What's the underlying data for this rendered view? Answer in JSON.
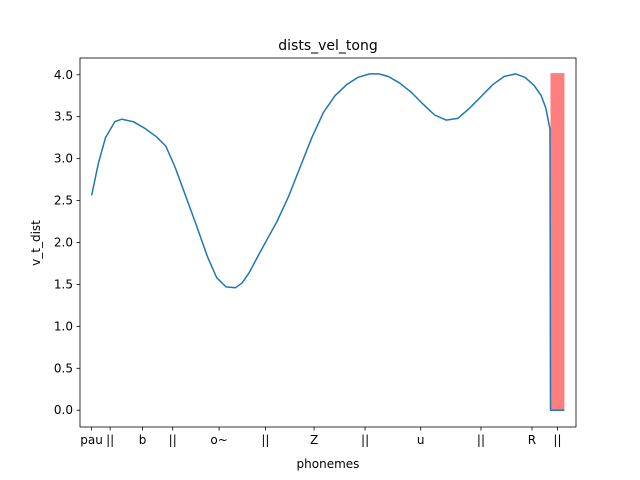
{
  "chart_data": {
    "type": "line",
    "title": "dists_vel_tong",
    "xlabel": "phonemes",
    "ylabel": "v_t_dist",
    "xlim": [
      -0.5,
      20.9
    ],
    "ylim": [
      -0.2,
      4.2
    ],
    "yticks": [
      0.0,
      0.5,
      1.0,
      1.5,
      2.0,
      2.5,
      3.0,
      3.5,
      4.0
    ],
    "ytick_labels": [
      "0.0",
      "0.5",
      "1.0",
      "1.5",
      "2.0",
      "2.5",
      "3.0",
      "3.5",
      "4.0"
    ],
    "xticks": [
      0,
      0.8,
      2.2,
      3.5,
      5.5,
      7.5,
      9.6,
      11.8,
      14.2,
      16.8,
      19.0,
      20.1
    ],
    "xtick_labels": [
      "pau",
      "||",
      "b",
      "||",
      "o~",
      "||",
      "Z",
      "||",
      "u",
      "||",
      "R",
      "||"
    ],
    "series": [
      {
        "color": "#1f77b4",
        "x": [
          0,
          0.3,
          0.6,
          1.0,
          1.3,
          1.8,
          2.3,
          2.8,
          3.2,
          3.6,
          4.0,
          4.5,
          5.0,
          5.4,
          5.8,
          6.2,
          6.5,
          6.8,
          7.2,
          7.6,
          8.0,
          8.5,
          9.0,
          9.5,
          10.0,
          10.5,
          11.0,
          11.5,
          12.0,
          12.4,
          12.8,
          13.3,
          13.8,
          14.3,
          14.8,
          15.3,
          15.8,
          16.3,
          16.8,
          17.3,
          17.8,
          18.3,
          18.7,
          19.1,
          19.4,
          19.6,
          19.78,
          19.8,
          20.4
        ],
        "y": [
          2.56,
          2.95,
          3.25,
          3.44,
          3.47,
          3.44,
          3.36,
          3.26,
          3.15,
          2.9,
          2.6,
          2.22,
          1.83,
          1.58,
          1.47,
          1.46,
          1.52,
          1.64,
          1.85,
          2.05,
          2.25,
          2.55,
          2.9,
          3.25,
          3.55,
          3.75,
          3.88,
          3.97,
          4.01,
          4.01,
          3.98,
          3.9,
          3.79,
          3.65,
          3.52,
          3.46,
          3.48,
          3.6,
          3.74,
          3.88,
          3.98,
          4.01,
          3.97,
          3.87,
          3.75,
          3.6,
          3.35,
          0.0,
          0.0
        ]
      }
    ],
    "bars": [
      {
        "x_start": 19.8,
        "x_end": 20.4,
        "height": 4.02,
        "color": "#ff7f7f"
      }
    ],
    "grid": false,
    "legend": "none"
  }
}
